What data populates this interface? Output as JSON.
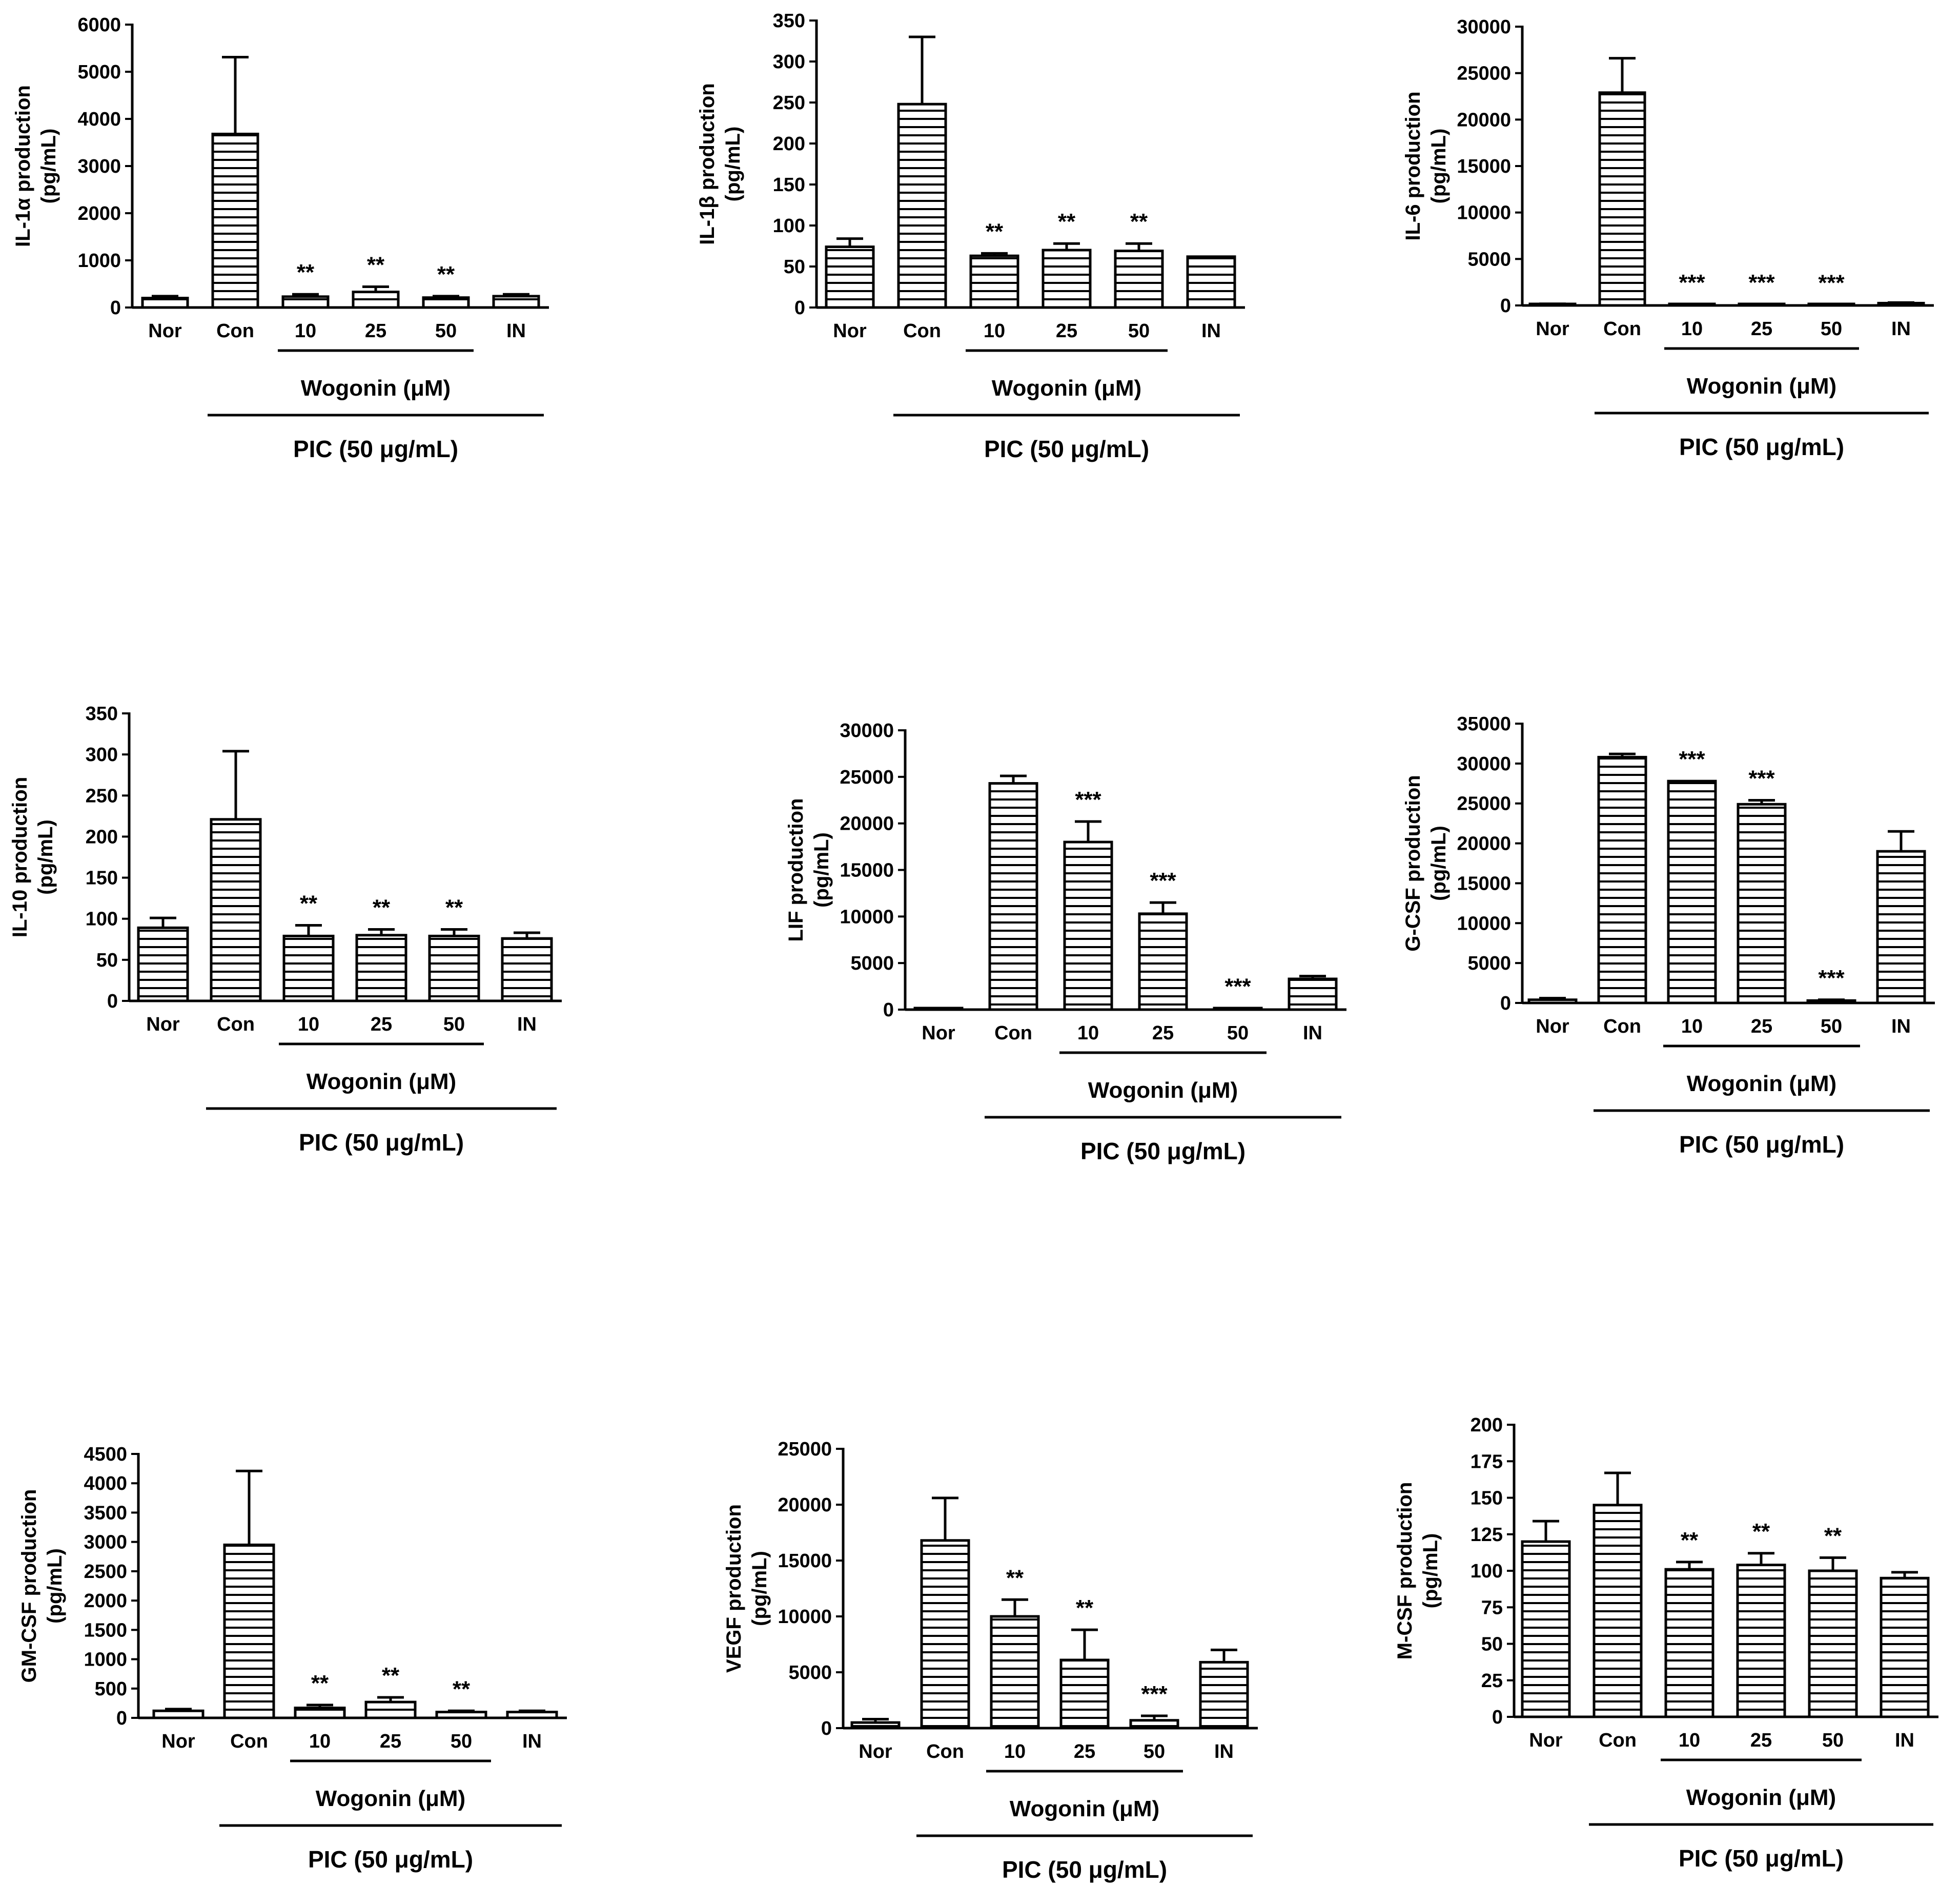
{
  "figure": {
    "x_categories": [
      "Nor",
      "Con",
      "10",
      "25",
      "50",
      "IN"
    ],
    "treatment_label": "Wogonin (μM)",
    "stimulus_label": "PIC (50 μg/mL)"
  },
  "colors": {
    "ink": "#000000",
    "fill": "#ffffff",
    "hatch": "#000000"
  },
  "chart_data": [
    {
      "type": "bar",
      "id": "il1a",
      "ylabel": "IL-1α production",
      "yunit": "(pg/mL)",
      "categories": [
        "Nor",
        "Con",
        "10",
        "25",
        "50",
        "IN"
      ],
      "values": [
        200,
        3680,
        230,
        330,
        210,
        240
      ],
      "errors": [
        40,
        1630,
        50,
        110,
        30,
        40
      ],
      "significance": [
        "",
        "",
        "**",
        "**",
        "**",
        ""
      ],
      "ylim": [
        0,
        6000
      ],
      "yticks": [
        0,
        1000,
        2000,
        3000,
        4000,
        5000,
        6000
      ]
    },
    {
      "type": "bar",
      "id": "il1b",
      "ylabel": "IL-1β production",
      "yunit": "(pg/mL)",
      "categories": [
        "Nor",
        "Con",
        "10",
        "25",
        "50",
        "IN"
      ],
      "values": [
        74,
        248,
        63,
        70,
        69,
        62
      ],
      "errors": [
        10,
        82,
        3,
        8,
        9,
        0
      ],
      "significance": [
        "",
        "",
        "**",
        "**",
        "**",
        ""
      ],
      "ylim": [
        0,
        350
      ],
      "yticks": [
        0,
        50,
        100,
        150,
        200,
        250,
        300,
        350
      ]
    },
    {
      "type": "bar",
      "id": "il6",
      "ylabel": "IL-6 production",
      "yunit": "(pg/mL)",
      "categories": [
        "Nor",
        "Con",
        "10",
        "25",
        "50",
        "IN"
      ],
      "values": [
        150,
        22900,
        100,
        80,
        60,
        250
      ],
      "errors": [
        30,
        3700,
        20,
        20,
        20,
        60
      ],
      "significance": [
        "",
        "",
        "***",
        "***",
        "***",
        ""
      ],
      "ylim": [
        0,
        30000
      ],
      "yticks": [
        0,
        5000,
        10000,
        15000,
        20000,
        25000,
        30000
      ]
    },
    {
      "type": "bar",
      "id": "il10",
      "ylabel": "IL-10 production",
      "yunit": "(pg/mL)",
      "categories": [
        "Nor",
        "Con",
        "10",
        "25",
        "50",
        "IN"
      ],
      "values": [
        89,
        221,
        79,
        80,
        79,
        76
      ],
      "errors": [
        12,
        83,
        13,
        7,
        8,
        7
      ],
      "significance": [
        "",
        "",
        "**",
        "**",
        "**",
        ""
      ],
      "ylim": [
        0,
        350
      ],
      "yticks": [
        0,
        50,
        100,
        150,
        200,
        250,
        300,
        350
      ]
    },
    {
      "type": "bar",
      "id": "lif",
      "ylabel": "LIF production",
      "yunit": "(pg/mL)",
      "categories": [
        "Nor",
        "Con",
        "10",
        "25",
        "50",
        "IN"
      ],
      "values": [
        80,
        24300,
        18000,
        10300,
        100,
        3300
      ],
      "errors": [
        30,
        800,
        2200,
        1200,
        30,
        300
      ],
      "significance": [
        "",
        "",
        "***",
        "***",
        "***",
        ""
      ],
      "ylim": [
        0,
        30000
      ],
      "yticks": [
        0,
        5000,
        10000,
        15000,
        20000,
        25000,
        30000
      ]
    },
    {
      "type": "bar",
      "id": "gcsf",
      "ylabel": "G-CSF production",
      "yunit": "(pg/mL)",
      "categories": [
        "Nor",
        "Con",
        "10",
        "25",
        "50",
        "IN"
      ],
      "values": [
        400,
        30800,
        27800,
        24900,
        300,
        19000
      ],
      "errors": [
        200,
        400,
        0,
        500,
        100,
        2500
      ],
      "significance": [
        "",
        "",
        "***",
        "***",
        "***",
        ""
      ],
      "ylim": [
        0,
        35000
      ],
      "yticks": [
        0,
        5000,
        10000,
        15000,
        20000,
        25000,
        30000,
        35000
      ]
    },
    {
      "type": "bar",
      "id": "gmcsf",
      "ylabel": "GM-CSF production",
      "yunit": "(pg/mL)",
      "categories": [
        "Nor",
        "Con",
        "10",
        "25",
        "50",
        "IN"
      ],
      "values": [
        120,
        2950,
        170,
        270,
        100,
        100
      ],
      "errors": [
        30,
        1260,
        50,
        80,
        20,
        20
      ],
      "significance": [
        "",
        "",
        "**",
        "**",
        "**",
        ""
      ],
      "ylim": [
        0,
        4500
      ],
      "yticks": [
        0,
        500,
        1000,
        1500,
        2000,
        2500,
        3000,
        3500,
        4000,
        4500
      ]
    },
    {
      "type": "bar",
      "id": "vegf",
      "ylabel": "VEGF production",
      "yunit": "(pg/mL)",
      "categories": [
        "Nor",
        "Con",
        "10",
        "25",
        "50",
        "IN"
      ],
      "values": [
        500,
        16800,
        10000,
        6100,
        700,
        5900
      ],
      "errors": [
        300,
        3800,
        1500,
        2700,
        400,
        1100
      ],
      "significance": [
        "",
        "",
        "**",
        "**",
        "***",
        ""
      ],
      "ylim": [
        0,
        25000
      ],
      "yticks": [
        0,
        5000,
        10000,
        15000,
        20000,
        25000
      ]
    },
    {
      "type": "bar",
      "id": "mcsf",
      "ylabel": "M-CSF production",
      "yunit": "(pg/mL)",
      "categories": [
        "Nor",
        "Con",
        "10",
        "25",
        "50",
        "IN"
      ],
      "values": [
        120,
        145,
        101,
        104,
        100,
        95
      ],
      "errors": [
        14,
        22,
        5,
        8,
        9,
        4
      ],
      "significance": [
        "",
        "",
        "**",
        "**",
        "**",
        ""
      ],
      "ylim": [
        0,
        200
      ],
      "yticks": [
        0,
        25,
        50,
        75,
        100,
        125,
        150,
        175,
        200
      ]
    }
  ]
}
